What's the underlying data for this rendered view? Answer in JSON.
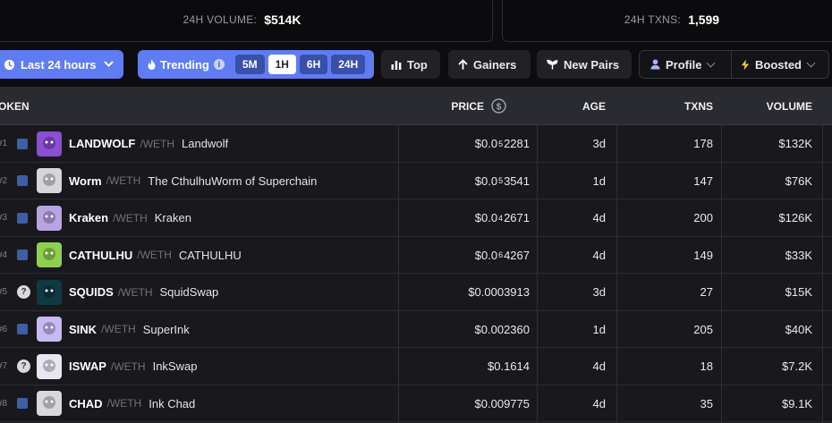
{
  "stats": {
    "volume": {
      "label": "24H VOLUME:",
      "value": "$514K"
    },
    "txns": {
      "label": "24H TXNS:",
      "value": "1,599"
    }
  },
  "filters": {
    "range": "Last 24 hours",
    "trending": "Trending",
    "timeframes": [
      "5M",
      "1H",
      "6H",
      "24H"
    ],
    "active_timeframe": "1H",
    "top": "Top",
    "gainers": "Gainers",
    "new_pairs": "New Pairs",
    "profile": "Profile",
    "boosted": "Boosted"
  },
  "table": {
    "headers": {
      "token": "OKEN",
      "price": "PRICE",
      "age": "AGE",
      "txns": "TXNS",
      "volume": "VOLUME"
    },
    "rows": [
      {
        "rank": "#1",
        "symbol": "LANDWOLF",
        "quote": "/WETH",
        "name": "Landwolf",
        "price_pre": "$0.0",
        "price_sub": "5",
        "price_post": "2281",
        "age": "3d",
        "txns": "178",
        "volume": "$132K",
        "avatar_color": "#8a4fd3",
        "verified": true
      },
      {
        "rank": "#2",
        "symbol": "Worm",
        "quote": "/WETH",
        "name": "The CthulhuWorm of Superchain",
        "price_pre": "$0.0",
        "price_sub": "5",
        "price_post": "3541",
        "age": "1d",
        "txns": "147",
        "volume": "$76K",
        "avatar_color": "#d6d6da",
        "verified": true
      },
      {
        "rank": "#3",
        "symbol": "Kraken",
        "quote": "/WETH",
        "name": "Kraken",
        "price_pre": "$0.0",
        "price_sub": "4",
        "price_post": "2671",
        "age": "4d",
        "txns": "200",
        "volume": "$126K",
        "avatar_color": "#b9a4e3",
        "verified": true
      },
      {
        "rank": "#4",
        "symbol": "CATHULHU",
        "quote": "/WETH",
        "name": "CATHULHU",
        "price_pre": "$0.0",
        "price_sub": "6",
        "price_post": "4267",
        "age": "4d",
        "txns": "149",
        "volume": "$33K",
        "avatar_color": "#8fd14f",
        "verified": true
      },
      {
        "rank": "#5",
        "symbol": "SQUIDS",
        "quote": "/WETH",
        "name": "SquidSwap",
        "price_pre": "$0.0003913",
        "price_sub": "",
        "price_post": "",
        "age": "3d",
        "txns": "27",
        "volume": "$15K",
        "avatar_color": "#0f3a44",
        "verified": false
      },
      {
        "rank": "#6",
        "symbol": "SINK",
        "quote": "/WETH",
        "name": "SuperInk",
        "price_pre": "$0.002360",
        "price_sub": "",
        "price_post": "",
        "age": "1d",
        "txns": "205",
        "volume": "$40K",
        "avatar_color": "#c7b9f2",
        "verified": true
      },
      {
        "rank": "#7",
        "symbol": "ISWAP",
        "quote": "/WETH",
        "name": "InkSwap",
        "price_pre": "$0.1614",
        "price_sub": "",
        "price_post": "",
        "age": "4d",
        "txns": "18",
        "volume": "$7.2K",
        "avatar_color": "#e9e6f4",
        "verified": false
      },
      {
        "rank": "#8",
        "symbol": "CHAD",
        "quote": "/WETH",
        "name": "Ink Chad",
        "price_pre": "$0.009775",
        "price_sub": "",
        "price_post": "",
        "age": "4d",
        "txns": "35",
        "volume": "$9.1K",
        "avatar_color": "#d8d8dc",
        "verified": true
      }
    ]
  }
}
